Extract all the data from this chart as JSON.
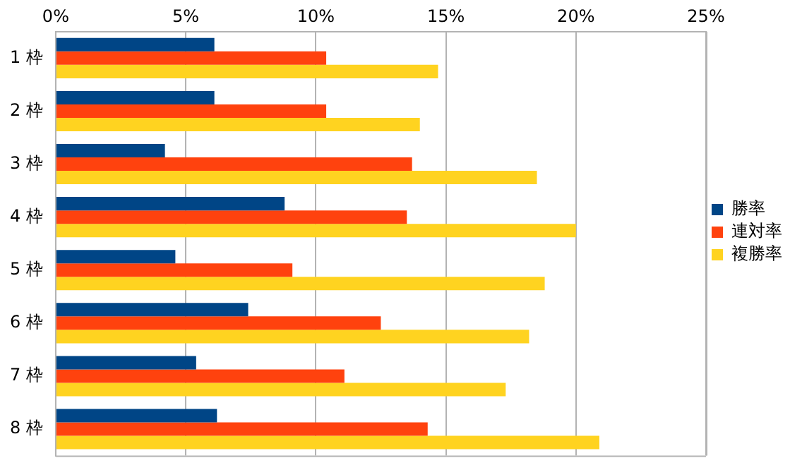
{
  "chart_data": {
    "type": "bar",
    "orientation": "horizontal",
    "categories": [
      "1 枠",
      "2 枠",
      "3 枠",
      "4 枠",
      "5 枠",
      "6 枠",
      "7 枠",
      "8 枠"
    ],
    "series": [
      {
        "name": "勝率",
        "color": "#004586",
        "values": [
          6.1,
          6.1,
          4.2,
          8.8,
          4.6,
          7.4,
          5.4,
          6.2
        ]
      },
      {
        "name": "連対率",
        "color": "#ff420e",
        "values": [
          10.4,
          10.4,
          13.7,
          13.5,
          9.1,
          12.5,
          11.1,
          14.3
        ]
      },
      {
        "name": "複勝率",
        "color": "#ffd320",
        "values": [
          14.7,
          14.0,
          18.5,
          20.0,
          18.8,
          18.2,
          17.3,
          20.9
        ]
      }
    ],
    "xlim": [
      0,
      25
    ],
    "xticks": [
      {
        "value": 0,
        "label": "0%"
      },
      {
        "value": 5,
        "label": "5%"
      },
      {
        "value": 10,
        "label": "10%"
      },
      {
        "value": 15,
        "label": "15%"
      },
      {
        "value": 20,
        "label": "20%"
      },
      {
        "value": 25,
        "label": "25%"
      }
    ],
    "grid": "x",
    "legend": "right"
  }
}
